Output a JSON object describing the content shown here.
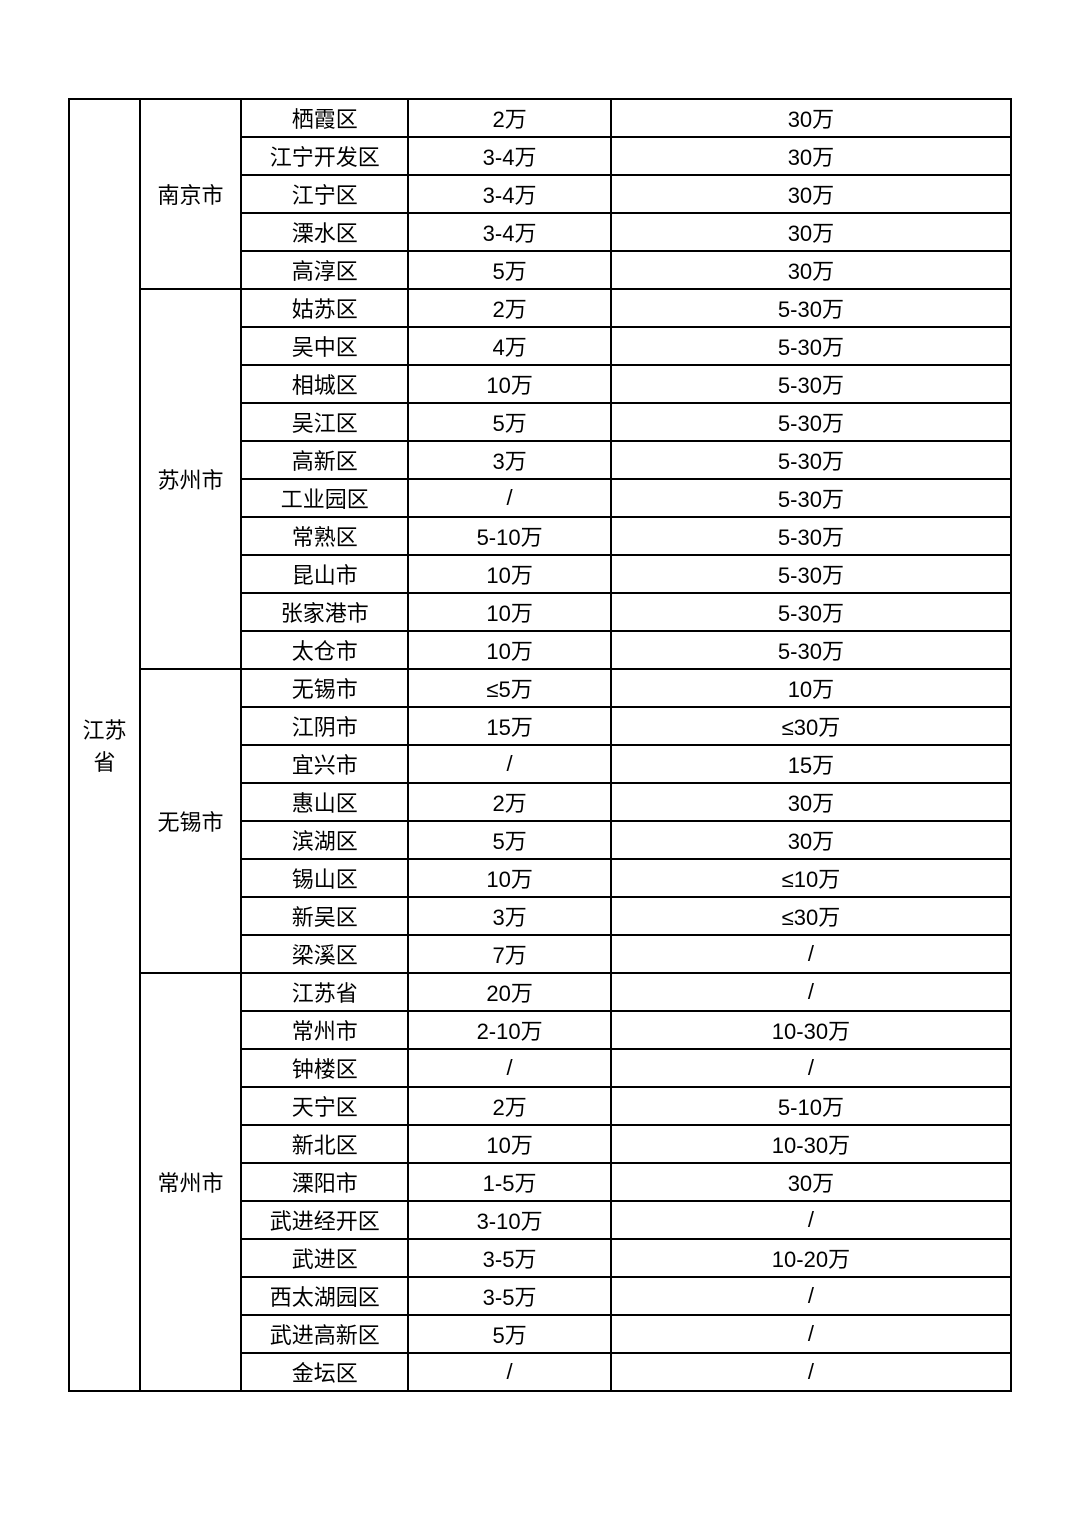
{
  "table": {
    "province": "江苏省",
    "cities": [
      {
        "name": "南京市",
        "rows": [
          {
            "district": "栖霞区",
            "val1": "2万",
            "val2": "30万"
          },
          {
            "district": "江宁开发区",
            "val1": "3-4万",
            "val2": "30万"
          },
          {
            "district": "江宁区",
            "val1": "3-4万",
            "val2": "30万"
          },
          {
            "district": "溧水区",
            "val1": "3-4万",
            "val2": "30万"
          },
          {
            "district": "高淳区",
            "val1": "5万",
            "val2": "30万"
          }
        ]
      },
      {
        "name": "苏州市",
        "rows": [
          {
            "district": "姑苏区",
            "val1": "2万",
            "val2": "5-30万"
          },
          {
            "district": "吴中区",
            "val1": "4万",
            "val2": "5-30万"
          },
          {
            "district": "相城区",
            "val1": "10万",
            "val2": "5-30万"
          },
          {
            "district": "吴江区",
            "val1": "5万",
            "val2": "5-30万"
          },
          {
            "district": "高新区",
            "val1": "3万",
            "val2": "5-30万"
          },
          {
            "district": "工业园区",
            "val1": "/",
            "val2": "5-30万"
          },
          {
            "district": "常熟区",
            "val1": "5-10万",
            "val2": "5-30万"
          },
          {
            "district": "昆山市",
            "val1": "10万",
            "val2": "5-30万"
          },
          {
            "district": "张家港市",
            "val1": "10万",
            "val2": "5-30万"
          },
          {
            "district": "太仓市",
            "val1": "10万",
            "val2": "5-30万"
          }
        ]
      },
      {
        "name": "无锡市",
        "rows": [
          {
            "district": "无锡市",
            "val1": "≤5万",
            "val2": "10万"
          },
          {
            "district": "江阴市",
            "val1": "15万",
            "val2": "≤30万"
          },
          {
            "district": "宜兴市",
            "val1": "/",
            "val2": "15万"
          },
          {
            "district": "惠山区",
            "val1": "2万",
            "val2": "30万"
          },
          {
            "district": "滨湖区",
            "val1": "5万",
            "val2": "30万"
          },
          {
            "district": "锡山区",
            "val1": "10万",
            "val2": "≤10万"
          },
          {
            "district": "新吴区",
            "val1": "3万",
            "val2": "≤30万"
          },
          {
            "district": "梁溪区",
            "val1": "7万",
            "val2": "/"
          }
        ]
      },
      {
        "name": "常州市",
        "rows": [
          {
            "district": "江苏省",
            "val1": "20万",
            "val2": "/"
          },
          {
            "district": "常州市",
            "val1": "2-10万",
            "val2": "10-30万"
          },
          {
            "district": "钟楼区",
            "val1": "/",
            "val2": "/"
          },
          {
            "district": "天宁区",
            "val1": "2万",
            "val2": "5-10万"
          },
          {
            "district": "新北区",
            "val1": "10万",
            "val2": "10-30万"
          },
          {
            "district": "溧阳市",
            "val1": "1-5万",
            "val2": "30万"
          },
          {
            "district": "武进经开区",
            "val1": "3-10万",
            "val2": "/"
          },
          {
            "district": "武进区",
            "val1": "3-5万",
            "val2": "10-20万"
          },
          {
            "district": "西太湖园区",
            "val1": "3-5万",
            "val2": "/"
          },
          {
            "district": "武进高新区",
            "val1": "5万",
            "val2": "/"
          },
          {
            "district": "金坛区",
            "val1": "/",
            "val2": "/"
          }
        ]
      }
    ]
  }
}
